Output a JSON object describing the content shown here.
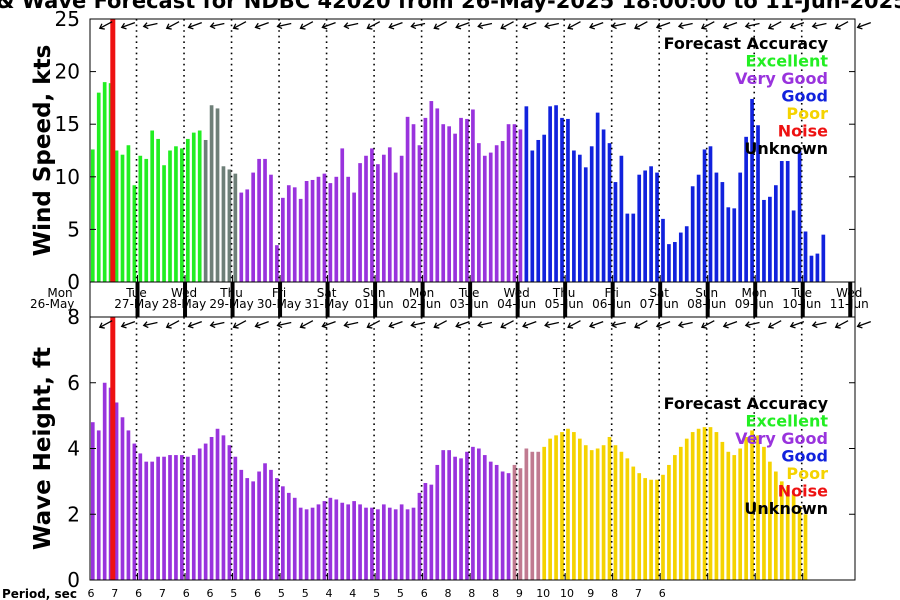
{
  "title": "& Wave Forecast for NDBC 42020 from 26-May-2025 18:00:00 to 11-Jun-2025",
  "day_labels": [
    {
      "dow": "Mon",
      "date": "26-May"
    },
    {
      "dow": "Tue",
      "date": "27-May"
    },
    {
      "dow": "Wed",
      "date": "28-May"
    },
    {
      "dow": "Thu",
      "date": "29-May"
    },
    {
      "dow": "Fri",
      "date": "30-May"
    },
    {
      "dow": "Sat",
      "date": "31-May"
    },
    {
      "dow": "Sun",
      "date": "01-Jun"
    },
    {
      "dow": "Mon",
      "date": "02-Jun"
    },
    {
      "dow": "Tue",
      "date": "03-Jun"
    },
    {
      "dow": "Wed",
      "date": "04-Jun"
    },
    {
      "dow": "Thu",
      "date": "05-Jun"
    },
    {
      "dow": "Fri",
      "date": "06-Jun"
    },
    {
      "dow": "Sat",
      "date": "07-Jun"
    },
    {
      "dow": "Sun",
      "date": "08-Jun"
    },
    {
      "dow": "Mon",
      "date": "09-Jun"
    },
    {
      "dow": "Tue",
      "date": "10-Jun"
    },
    {
      "dow": "Wed",
      "date": "11-Jun"
    }
  ],
  "legend": {
    "title": "Forecast Accuracy",
    "items": [
      {
        "label": "Excellent",
        "color": "#22ee22"
      },
      {
        "label": "Very Good",
        "color": "#9933dd"
      },
      {
        "label": "Good",
        "color": "#1122dd"
      },
      {
        "label": "Poor",
        "color": "#f5d300"
      },
      {
        "label": "Noise",
        "color": "#ee1111"
      },
      {
        "label": "Unknown",
        "color": "#000000"
      }
    ]
  },
  "colors": {
    "unknown_gray": "#6e7f78",
    "transition_mauve": "#c07a90",
    "now_line": "#ee1111"
  },
  "period_label": "Period, sec",
  "periods": [
    "6",
    "7",
    "6",
    "7",
    "6",
    "6",
    "5",
    "6",
    "5",
    "5",
    "4",
    "4",
    "5",
    "5",
    "6",
    "8",
    "8",
    "8",
    "9",
    "10",
    "10",
    "9",
    "8",
    "7",
    "6"
  ],
  "chart_data": [
    {
      "type": "bar",
      "name": "wind",
      "ylabel": "Wind Speed, kts",
      "ylim": [
        0,
        25
      ],
      "yticks": [
        0,
        5,
        10,
        15,
        20,
        25
      ],
      "xlim": [
        0,
        16.1
      ],
      "now_marker": 0.48,
      "x_step": 0.125,
      "x_start": 0.02,
      "values": [
        12.6,
        18.0,
        19.0,
        18.9,
        12.5,
        12.1,
        13.0,
        9.2,
        12.0,
        11.7,
        14.4,
        13.6,
        11.1,
        12.5,
        12.9,
        12.7,
        13.6,
        14.2,
        14.4,
        13.5,
        16.8,
        16.5,
        11.0,
        10.7,
        10.3,
        8.5,
        8.8,
        10.4,
        11.7,
        11.7,
        10.2,
        3.5,
        8.0,
        9.2,
        9.0,
        7.9,
        9.6,
        9.7,
        10.0,
        10.3,
        9.4,
        10.0,
        12.7,
        10.0,
        8.5,
        11.3,
        12.0,
        12.7,
        11.2,
        12.1,
        12.8,
        10.4,
        12.0,
        15.7,
        15.0,
        13.0,
        15.6,
        17.2,
        16.5,
        15.0,
        14.8,
        14.1,
        15.6,
        15.5,
        16.4,
        13.2,
        12.0,
        12.3,
        13.0,
        13.4,
        15.0,
        15.0,
        14.5,
        16.7,
        12.5,
        13.5,
        14.0,
        16.7,
        16.8,
        15.6,
        15.5,
        12.5,
        12.1,
        10.9,
        12.9,
        16.1,
        14.5,
        13.2,
        9.5,
        12.0,
        6.5,
        6.5,
        10.2,
        10.6,
        11.0,
        10.4,
        6.0,
        3.6,
        3.8,
        4.7,
        5.3,
        9.1,
        10.2,
        12.6,
        12.9,
        10.4,
        9.5,
        7.1,
        7.0,
        10.4,
        13.8,
        17.4,
        14.9,
        7.8,
        8.1,
        9.2,
        11.5,
        11.5,
        6.8,
        12.5,
        4.8,
        2.5,
        2.7,
        4.5
      ],
      "quality": [
        "E",
        "E",
        "E",
        "E",
        "E",
        "E",
        "E",
        "E",
        "E",
        "E",
        "E",
        "E",
        "E",
        "E",
        "E",
        "E",
        "E",
        "E",
        "E",
        "U",
        "U",
        "U",
        "U",
        "U",
        "U",
        "V",
        "V",
        "V",
        "V",
        "V",
        "V",
        "V",
        "V",
        "V",
        "V",
        "V",
        "V",
        "V",
        "V",
        "V",
        "V",
        "V",
        "V",
        "V",
        "V",
        "V",
        "V",
        "V",
        "V",
        "V",
        "V",
        "V",
        "V",
        "V",
        "V",
        "V",
        "V",
        "V",
        "V",
        "V",
        "V",
        "V",
        "V",
        "V",
        "V",
        "V",
        "V",
        "V",
        "V",
        "V",
        "V",
        "V",
        "V",
        "G",
        "G",
        "G",
        "G",
        "G",
        "G",
        "G",
        "G",
        "G",
        "G",
        "G",
        "G",
        "G",
        "G",
        "G",
        "G",
        "G",
        "G",
        "G",
        "G",
        "G",
        "G",
        "G",
        "G",
        "G",
        "G",
        "G",
        "G",
        "G",
        "G",
        "G",
        "G",
        "G",
        "G",
        "G",
        "G",
        "G",
        "G",
        "G",
        "G",
        "G",
        "G",
        "G",
        "G",
        "G",
        "G",
        "G",
        "G",
        "G",
        "G",
        "G"
      ]
    },
    {
      "type": "bar",
      "name": "wave",
      "ylabel": "Wave Height, ft",
      "ylim": [
        0,
        8
      ],
      "yticks": [
        0,
        2,
        4,
        6,
        8
      ],
      "xlim": [
        0,
        16.1
      ],
      "now_marker": 0.48,
      "x_step": 0.125,
      "x_start": 0.02,
      "values": [
        4.8,
        4.55,
        6.0,
        5.85,
        5.4,
        4.95,
        4.55,
        4.15,
        3.85,
        3.6,
        3.6,
        3.75,
        3.75,
        3.8,
        3.8,
        3.8,
        3.75,
        3.8,
        4.0,
        4.15,
        4.35,
        4.6,
        4.4,
        4.1,
        3.75,
        3.35,
        3.1,
        3.0,
        3.3,
        3.55,
        3.35,
        3.1,
        2.85,
        2.65,
        2.5,
        2.2,
        2.15,
        2.2,
        2.3,
        2.4,
        2.5,
        2.45,
        2.35,
        2.3,
        2.4,
        2.3,
        2.2,
        2.2,
        2.15,
        2.3,
        2.2,
        2.15,
        2.3,
        2.15,
        2.2,
        2.65,
        2.95,
        2.9,
        3.5,
        3.95,
        3.95,
        3.75,
        3.7,
        3.9,
        4.05,
        4.0,
        3.8,
        3.6,
        3.5,
        3.3,
        3.25,
        3.5,
        3.4,
        4.0,
        3.9,
        3.9,
        4.05,
        4.3,
        4.4,
        4.5,
        4.6,
        4.5,
        4.3,
        4.1,
        3.95,
        4.0,
        4.1,
        4.35,
        4.1,
        3.9,
        3.7,
        3.45,
        3.25,
        3.1,
        3.05,
        3.05,
        3.2,
        3.5,
        3.8,
        4.05,
        4.3,
        4.5,
        4.6,
        4.65,
        4.65,
        4.5,
        4.2,
        3.9,
        3.8,
        4.0,
        4.35,
        4.55,
        4.4,
        4.05,
        3.6,
        3.3,
        3.0,
        2.85,
        2.6,
        2.25,
        2.0
      ],
      "quality": [
        "V",
        "V",
        "V",
        "V",
        "V",
        "V",
        "V",
        "V",
        "V",
        "V",
        "V",
        "V",
        "V",
        "V",
        "V",
        "V",
        "V",
        "V",
        "V",
        "V",
        "V",
        "V",
        "V",
        "V",
        "V",
        "V",
        "V",
        "V",
        "V",
        "V",
        "V",
        "V",
        "V",
        "V",
        "V",
        "V",
        "V",
        "V",
        "V",
        "V",
        "V",
        "V",
        "V",
        "V",
        "V",
        "V",
        "V",
        "V",
        "V",
        "V",
        "V",
        "V",
        "V",
        "V",
        "V",
        "V",
        "V",
        "V",
        "V",
        "V",
        "V",
        "V",
        "V",
        "V",
        "V",
        "V",
        "V",
        "V",
        "V",
        "V",
        "V",
        "M",
        "M",
        "M",
        "M",
        "M",
        "P",
        "P",
        "P",
        "P",
        "P",
        "P",
        "P",
        "P",
        "P",
        "P",
        "P",
        "P",
        "P",
        "P",
        "P",
        "P",
        "P",
        "P",
        "P",
        "P",
        "P",
        "P",
        "P",
        "P",
        "P",
        "P",
        "P",
        "P",
        "P",
        "P",
        "P",
        "P",
        "P",
        "P",
        "P",
        "P",
        "P",
        "P",
        "P",
        "P",
        "P",
        "P",
        "P",
        "P",
        "P"
      ]
    }
  ]
}
